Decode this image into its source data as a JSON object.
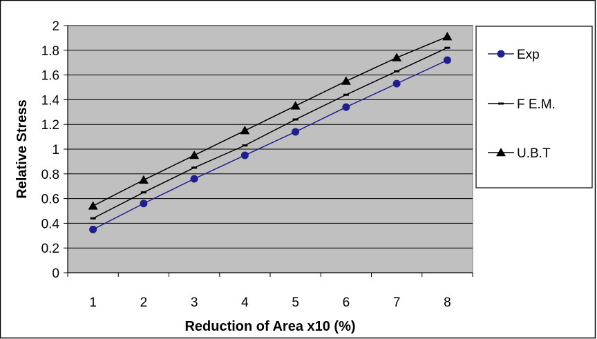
{
  "chart_data": {
    "type": "line",
    "title": "",
    "xlabel": "Reduction of Area x10  (%)",
    "ylabel": "Relative Stress",
    "categories": [
      "1",
      "2",
      "3",
      "4",
      "5",
      "6",
      "7",
      "8"
    ],
    "ylim": [
      0,
      2
    ],
    "yticks": [
      "0",
      "0.2",
      "0.4",
      "0.6",
      "0.8",
      "1",
      "1.2",
      "1.4",
      "1.6",
      "1.8",
      "2"
    ],
    "grid": "horizontal",
    "plot_background": "#c0c0c0",
    "legend": "right",
    "series": [
      {
        "name": "Exp",
        "values": [
          0.35,
          0.56,
          0.76,
          0.95,
          1.14,
          1.34,
          1.53,
          1.72
        ],
        "color": "#1f1f8f",
        "marker": "circle"
      },
      {
        "name": "F E.M.",
        "values": [
          0.44,
          0.65,
          0.85,
          1.03,
          1.24,
          1.44,
          1.63,
          1.82
        ],
        "color": "#000000",
        "marker": "dash"
      },
      {
        "name": "U.B.T",
        "values": [
          0.54,
          0.75,
          0.95,
          1.15,
          1.35,
          1.55,
          1.74,
          1.91
        ],
        "color": "#000000",
        "marker": "triangle"
      }
    ]
  }
}
